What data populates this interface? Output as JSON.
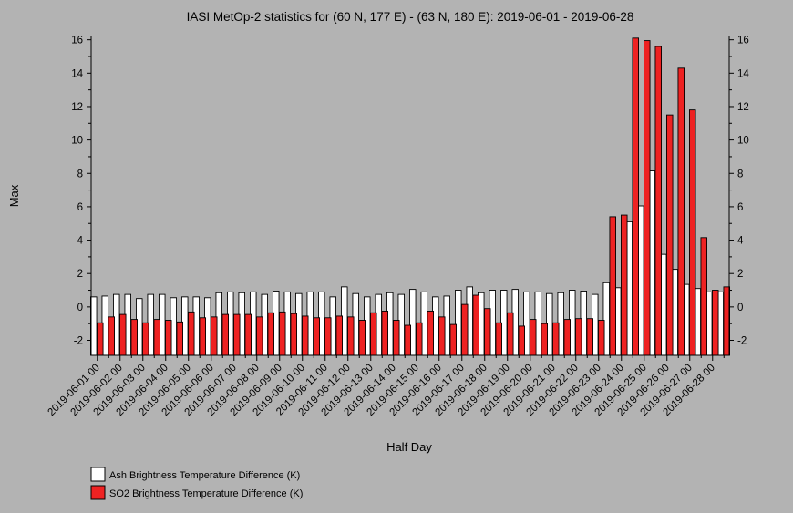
{
  "chart_data": {
    "type": "bar",
    "title": "IASI MetOp-2 statistics for (60 N, 177 E) - (63 N, 180 E): 2019-06-01 - 2019-06-28",
    "xlabel": "Half Day",
    "ylabel": "Max",
    "ylim": [
      -2.9,
      16.2
    ],
    "yticks": [
      -2,
      0,
      2,
      4,
      6,
      8,
      10,
      12,
      14,
      16
    ],
    "tick_labels": [
      "2019-06-01 00",
      "2019-06-02 00",
      "2019-06-03 00",
      "2019-06-04 00",
      "2019-06-05 00",
      "2019-06-06 00",
      "2019-06-07 00",
      "2019-06-08 00",
      "2019-06-09 00",
      "2019-06-10 00",
      "2019-06-11 00",
      "2019-06-12 00",
      "2019-06-13 00",
      "2019-06-14 00",
      "2019-06-15 00",
      "2019-06-16 00",
      "2019-06-17 00",
      "2019-06-18 00",
      "2019-06-19 00",
      "2019-06-20 00",
      "2019-06-21 00",
      "2019-06-22 00",
      "2019-06-23 00",
      "2019-06-24 00",
      "2019-06-25 00",
      "2019-06-26 00",
      "2019-06-27 00",
      "2019-06-28 00"
    ],
    "grid": false,
    "legend_position": "bottom-left",
    "series": [
      {
        "name": "Ash Brightness Temperature Difference (K)",
        "color": "#ffffff",
        "values": [
          0.6,
          0.65,
          0.75,
          0.75,
          0.5,
          0.75,
          0.75,
          0.55,
          0.6,
          0.6,
          0.55,
          0.85,
          0.9,
          0.85,
          0.9,
          0.75,
          0.95,
          0.9,
          0.8,
          0.9,
          0.9,
          0.6,
          1.2,
          0.8,
          0.6,
          0.75,
          0.85,
          0.75,
          1.05,
          0.9,
          0.6,
          0.65,
          1.0,
          1.2,
          0.85,
          1.0,
          1.0,
          1.05,
          0.9,
          0.9,
          0.8,
          0.85,
          1.0,
          0.95,
          0.75,
          1.45,
          1.15,
          5.1,
          6.05,
          8.15,
          3.15,
          2.25,
          1.35,
          1.1,
          0.9,
          0.9
        ]
      },
      {
        "name": "SO2 Brightness Temperature Difference (K)",
        "color": "#ee2222",
        "values": [
          -0.95,
          -0.6,
          -0.45,
          -0.75,
          -0.95,
          -0.75,
          -0.8,
          -0.9,
          -0.3,
          -0.65,
          -0.6,
          -0.45,
          -0.45,
          -0.45,
          -0.6,
          -0.35,
          -0.3,
          -0.4,
          -0.55,
          -0.65,
          -0.65,
          -0.55,
          -0.6,
          -0.8,
          -0.35,
          -0.25,
          -0.8,
          -1.1,
          -0.95,
          -0.25,
          -0.6,
          -1.05,
          0.15,
          0.7,
          -0.1,
          -0.95,
          -0.35,
          -1.15,
          -0.75,
          -1.0,
          -0.95,
          -0.75,
          -0.7,
          -0.7,
          -0.8,
          5.4,
          5.5,
          16.1,
          15.95,
          15.6,
          11.5,
          14.3,
          11.8,
          4.15,
          1.0,
          1.2
        ]
      }
    ]
  }
}
